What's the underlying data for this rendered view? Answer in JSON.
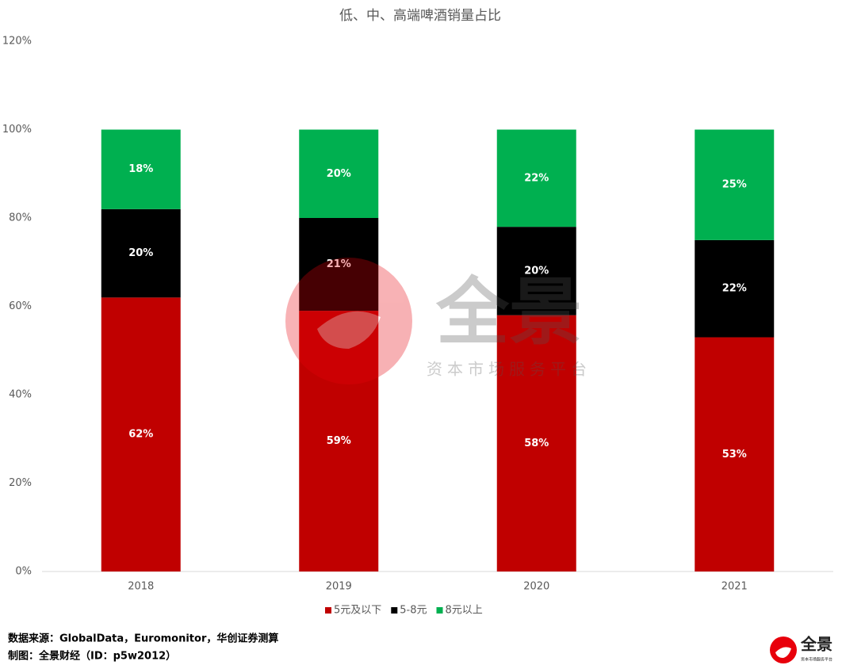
{
  "chart_data": {
    "type": "stacked_bar",
    "title": "低、中、高端啤酒销量占比",
    "categories": [
      "2018",
      "2019",
      "2020",
      "2021"
    ],
    "series": [
      {
        "name": "5元及以下",
        "color": "#c00000",
        "values": [
          62,
          59,
          58,
          53
        ],
        "value_labels": [
          "62%",
          "59%",
          "58%",
          "53%"
        ]
      },
      {
        "name": "5-8元",
        "color": "#000000",
        "values": [
          20,
          21,
          20,
          22
        ],
        "value_labels": [
          "20%",
          "21%",
          "20%",
          "22%"
        ]
      },
      {
        "name": "8元以上",
        "color": "#00b050",
        "values": [
          18,
          20,
          22,
          25
        ],
        "value_labels": [
          "18%",
          "20%",
          "22%",
          "25%"
        ]
      }
    ],
    "ylim": [
      0,
      120
    ],
    "yticks": [
      {
        "value": 0,
        "label": "0%"
      },
      {
        "value": 20,
        "label": "20%"
      },
      {
        "value": 40,
        "label": "40%"
      },
      {
        "value": 60,
        "label": "60%"
      },
      {
        "value": 80,
        "label": "80%"
      },
      {
        "value": 100,
        "label": "100%"
      },
      {
        "value": 120,
        "label": "120%"
      }
    ],
    "grid": false,
    "legend": "bottom"
  },
  "watermark": {
    "brand": "全景",
    "tagline": "资本市场服务平台"
  },
  "footer": {
    "source": "数据来源：GlobalData，Euromonitor，华创证券测算",
    "credit": "制图：全景财经（ID：p5w2012）"
  }
}
